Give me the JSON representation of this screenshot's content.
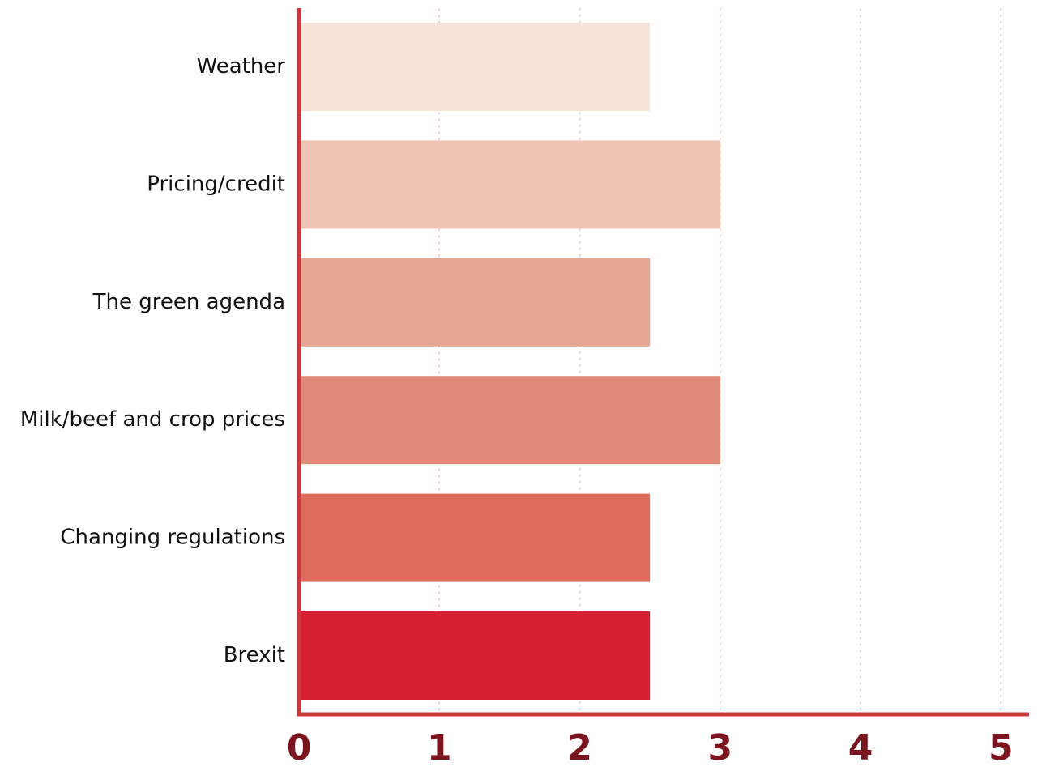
{
  "chart_data": {
    "type": "barh",
    "categories": [
      "Weather",
      "Pricing/credit",
      "The green agenda",
      "Milk/beef and crop prices",
      "Changing regulations",
      "Brexit"
    ],
    "values": [
      2.5,
      3,
      2.5,
      3,
      2.5,
      2.5
    ],
    "colors": [
      "#f9e4dc",
      "#f0c4b4",
      "#e8a594",
      "#e08a78",
      "#dd6c5c",
      "#d42030"
    ],
    "xlim": [
      0,
      5.2
    ],
    "xticks": [
      0,
      1,
      2,
      3,
      4,
      5
    ],
    "grid": true
  }
}
